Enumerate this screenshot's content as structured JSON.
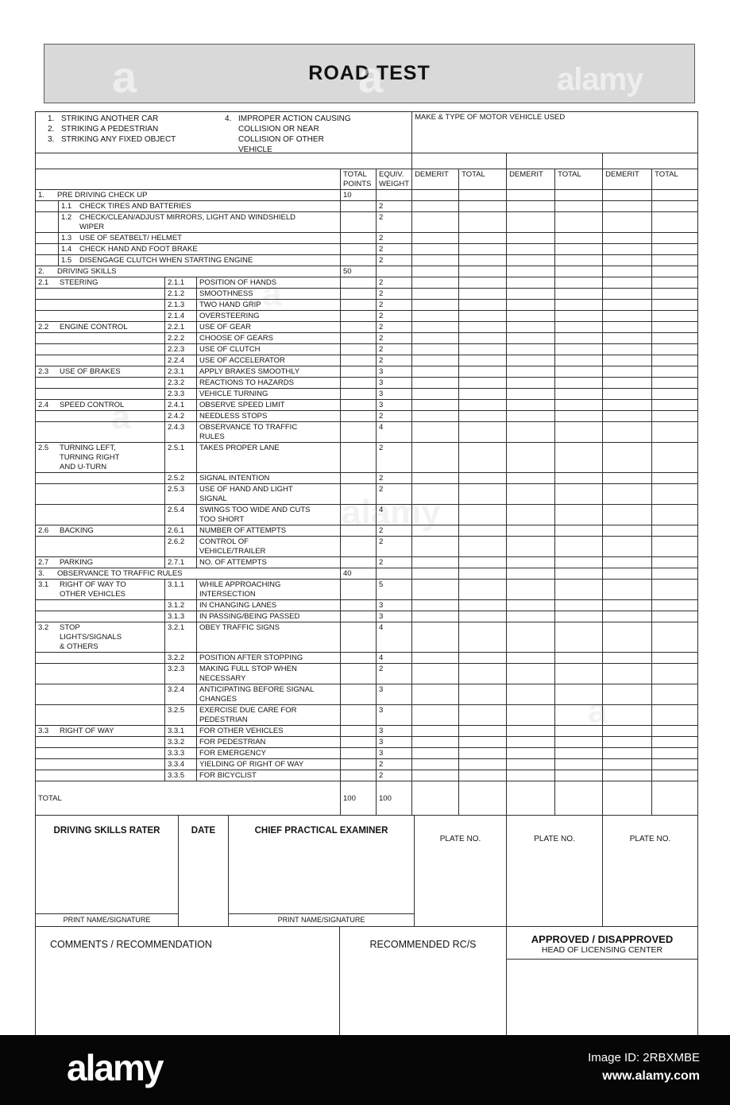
{
  "page": {
    "title": "ROAD TEST"
  },
  "violations": {
    "left": [
      {
        "num": "1.",
        "text": "STRIKING ANOTHER CAR"
      },
      {
        "num": "2.",
        "text": "STRIKING A PEDESTRIAN"
      },
      {
        "num": "3.",
        "text": "STRIKING ANY FIXED OBJECT"
      }
    ],
    "right": [
      {
        "num": "4.",
        "lines": [
          "IMPROPER ACTION CAUSING",
          "COLLISION OR NEAR",
          "COLLISION OF OTHER",
          "VEHICLE"
        ]
      }
    ]
  },
  "table": {
    "vehicle_header": "MAKE & TYPE OF MOTOR VEHICLE USED",
    "col_headers": {
      "total_points": "TOTAL POINTS",
      "equiv_weight": "EQUIV. WEIGHT",
      "pairs": [
        "DEMERIT",
        "TOTAL",
        "DEMERIT",
        "TOTAL",
        "DEMERIT",
        "TOTAL"
      ]
    },
    "rows": [
      {
        "type": "section",
        "num": "1.",
        "title": "PRE DRIVING CHECK UP",
        "points": "10",
        "weight": ""
      },
      {
        "type": "item1",
        "num": "1.1",
        "lines": [
          "CHECK TIRES AND BATTERIES"
        ],
        "weight": "2"
      },
      {
        "type": "item1",
        "num": "1.2",
        "lines": [
          "CHECK/CLEAN/ADJUST MIRRORS, LIGHT AND WINDSHIELD",
          "WIPER"
        ],
        "weight": "2"
      },
      {
        "type": "item1",
        "num": "1.3",
        "lines": [
          "USE OF SEATBELT/ HELMET"
        ],
        "weight": "2"
      },
      {
        "type": "item1",
        "num": "1.4",
        "lines": [
          "CHECK HAND AND FOOT BRAKE"
        ],
        "weight": "2"
      },
      {
        "type": "item1",
        "num": "1.5",
        "lines": [
          "DISENGAGE CLUTCH WHEN STARTING ENGINE"
        ],
        "weight": "2"
      },
      {
        "type": "section",
        "num": "2.",
        "title": "DRIVING SKILLS",
        "points": "50",
        "weight": ""
      },
      {
        "type": "cat",
        "cat_num": "2.1",
        "cat_lines": [
          "STEERING"
        ],
        "num": "2.1.1",
        "lines": [
          "POSITION OF HANDS"
        ],
        "weight": "2"
      },
      {
        "type": "sub",
        "num": "2.1.2",
        "lines": [
          "SMOOTHNESS"
        ],
        "weight": "2"
      },
      {
        "type": "sub",
        "num": "2.1.3",
        "lines": [
          "TWO HAND GRIP"
        ],
        "weight": "2"
      },
      {
        "type": "sub",
        "num": "2.1.4",
        "lines": [
          "OVERSTEERING"
        ],
        "weight": "2"
      },
      {
        "type": "cat",
        "cat_num": "2.2",
        "cat_lines": [
          "ENGINE CONTROL"
        ],
        "num": "2.2.1",
        "lines": [
          "USE OF GEAR"
        ],
        "weight": "2"
      },
      {
        "type": "sub",
        "num": "2.2.2",
        "lines": [
          "CHOOSE OF GEARS"
        ],
        "weight": "2"
      },
      {
        "type": "sub",
        "num": "2.2.3",
        "lines": [
          "USE OF CLUTCH"
        ],
        "weight": "2"
      },
      {
        "type": "sub",
        "num": "2.2.4",
        "lines": [
          "USE OF ACCELERATOR"
        ],
        "weight": "2"
      },
      {
        "type": "cat",
        "cat_num": "2.3",
        "cat_lines": [
          "USE OF BRAKES"
        ],
        "num": "2.3.1",
        "lines": [
          "APPLY BRAKES SMOOTHLY"
        ],
        "weight": "3"
      },
      {
        "type": "sub",
        "num": "2.3.2",
        "lines": [
          "REACTIONS TO HAZARDS"
        ],
        "weight": "3"
      },
      {
        "type": "sub",
        "num": "2.3.3",
        "lines": [
          "VEHICLE TURNING"
        ],
        "weight": "3"
      },
      {
        "type": "cat",
        "cat_num": "2.4",
        "cat_lines": [
          "SPEED CONTROL"
        ],
        "num": "2.4.1",
        "lines": [
          "OBSERVE SPEED LIMIT"
        ],
        "weight": "3"
      },
      {
        "type": "sub",
        "num": "2.4.2",
        "lines": [
          "NEEDLESS STOPS"
        ],
        "weight": "2"
      },
      {
        "type": "sub",
        "num": "2.4.3",
        "lines": [
          "OBSERVANCE TO TRAFFIC",
          "RULES"
        ],
        "weight": "4"
      },
      {
        "type": "cat",
        "cat_num": "2.5",
        "cat_lines": [
          "TURNING LEFT,",
          "TURNING RIGHT",
          "AND U-TURN"
        ],
        "num": "2.5.1",
        "lines": [
          "TAKES PROPER LANE"
        ],
        "weight": "2"
      },
      {
        "type": "sub",
        "num": "2.5.2",
        "lines": [
          "SIGNAL INTENTION"
        ],
        "weight": "2"
      },
      {
        "type": "sub",
        "num": "2.5.3",
        "lines": [
          "USE OF HAND AND LIGHT SIGNAL"
        ],
        "weight": "2"
      },
      {
        "type": "sub",
        "num": "2.5.4",
        "lines": [
          "SWINGS TOO WIDE AND CUTS",
          "TOO SHORT"
        ],
        "weight": "4"
      },
      {
        "type": "cat",
        "cat_num": "2.6",
        "cat_lines": [
          "BACKING"
        ],
        "num": "2.6.1",
        "lines": [
          "NUMBER OF ATTEMPTS"
        ],
        "weight": "2"
      },
      {
        "type": "sub",
        "num": "2.6.2",
        "lines": [
          "CONTROL OF VEHICLE/TRAILER"
        ],
        "weight": "2"
      },
      {
        "type": "cat",
        "cat_num": "2.7",
        "cat_lines": [
          "PARKING"
        ],
        "num": "2.7.1",
        "lines": [
          "NO. OF ATTEMPTS"
        ],
        "weight": "2"
      },
      {
        "type": "section",
        "num": "3.",
        "title": "OBSERVANCE TO TRAFFIC RULES",
        "points": "40",
        "weight": ""
      },
      {
        "type": "cat",
        "cat_num": "3.1",
        "cat_lines": [
          "RIGHT OF WAY TO",
          "OTHER VEHICLES"
        ],
        "num": "3.1.1",
        "lines": [
          "WHILE APPROACHING",
          "INTERSECTION"
        ],
        "weight": "5"
      },
      {
        "type": "sub",
        "num": "3.1.2",
        "lines": [
          "IN CHANGING LANES"
        ],
        "weight": "3"
      },
      {
        "type": "sub",
        "num": "3.1.3",
        "lines": [
          "IN PASSING/BEING PASSED"
        ],
        "weight": "3"
      },
      {
        "type": "cat",
        "cat_num": "3.2",
        "cat_lines": [
          "STOP",
          "LIGHTS/SIGNALS",
          "& OTHERS"
        ],
        "num": "3.2.1",
        "lines": [
          "OBEY TRAFFIC SIGNS"
        ],
        "weight": "4"
      },
      {
        "type": "sub",
        "num": "3.2.2",
        "lines": [
          "POSITION AFTER STOPPING"
        ],
        "weight": "4"
      },
      {
        "type": "sub",
        "num": "3.2.3",
        "lines": [
          "MAKING FULL STOP WHEN",
          "NECESSARY"
        ],
        "weight": "2"
      },
      {
        "type": "sub",
        "num": "3.2.4",
        "lines": [
          "ANTICIPATING BEFORE SIGNAL",
          "CHANGES"
        ],
        "weight": "3"
      },
      {
        "type": "sub",
        "num": "3.2.5",
        "lines": [
          "EXERCISE DUE CARE FOR",
          "PEDESTRIAN"
        ],
        "weight": "3"
      },
      {
        "type": "cat",
        "cat_num": "3.3",
        "cat_lines": [
          "RIGHT OF WAY"
        ],
        "num": "3.3.1",
        "lines": [
          "FOR OTHER VEHICLES"
        ],
        "weight": "3"
      },
      {
        "type": "sub",
        "num": "3.3.2",
        "lines": [
          "FOR PEDESTRIAN"
        ],
        "weight": "3"
      },
      {
        "type": "sub",
        "num": "3.3.3",
        "lines": [
          "FOR EMERGENCY"
        ],
        "weight": "3"
      },
      {
        "type": "sub",
        "num": "3.3.4",
        "lines": [
          "YIELDING OF RIGHT OF WAY"
        ],
        "weight": "2"
      },
      {
        "type": "sub",
        "num": "3.3.5",
        "lines": [
          "FOR BICYCLIST"
        ],
        "weight": "2"
      }
    ],
    "total_row": {
      "label": "TOTAL",
      "total_points": "100",
      "equiv_weight": "100"
    }
  },
  "signatures": {
    "rater_label": "DRIVING SKILLS RATER",
    "date_label": "DATE",
    "examiner_label": "CHIEF PRACTICAL EXAMINER",
    "print_label": "PRINT NAME/SIGNATURE",
    "plates": [
      "PLATE NO.",
      "PLATE NO.",
      "PLATE NO."
    ]
  },
  "footer_section": {
    "comments_label": "COMMENTS / RECOMMENDATION",
    "recommended_label": "RECOMMENDED RC/S",
    "approved_label": "APPROVED / DISAPPROVED",
    "approved_sub": "HEAD OF LICENSING CENTER",
    "print_label": "PRINT NAME/SIGNATURE"
  },
  "watermark": {
    "brand": "alamy",
    "letter": "a",
    "image_id": "Image ID: 2RBXMBE",
    "site": "www.alamy.com"
  }
}
